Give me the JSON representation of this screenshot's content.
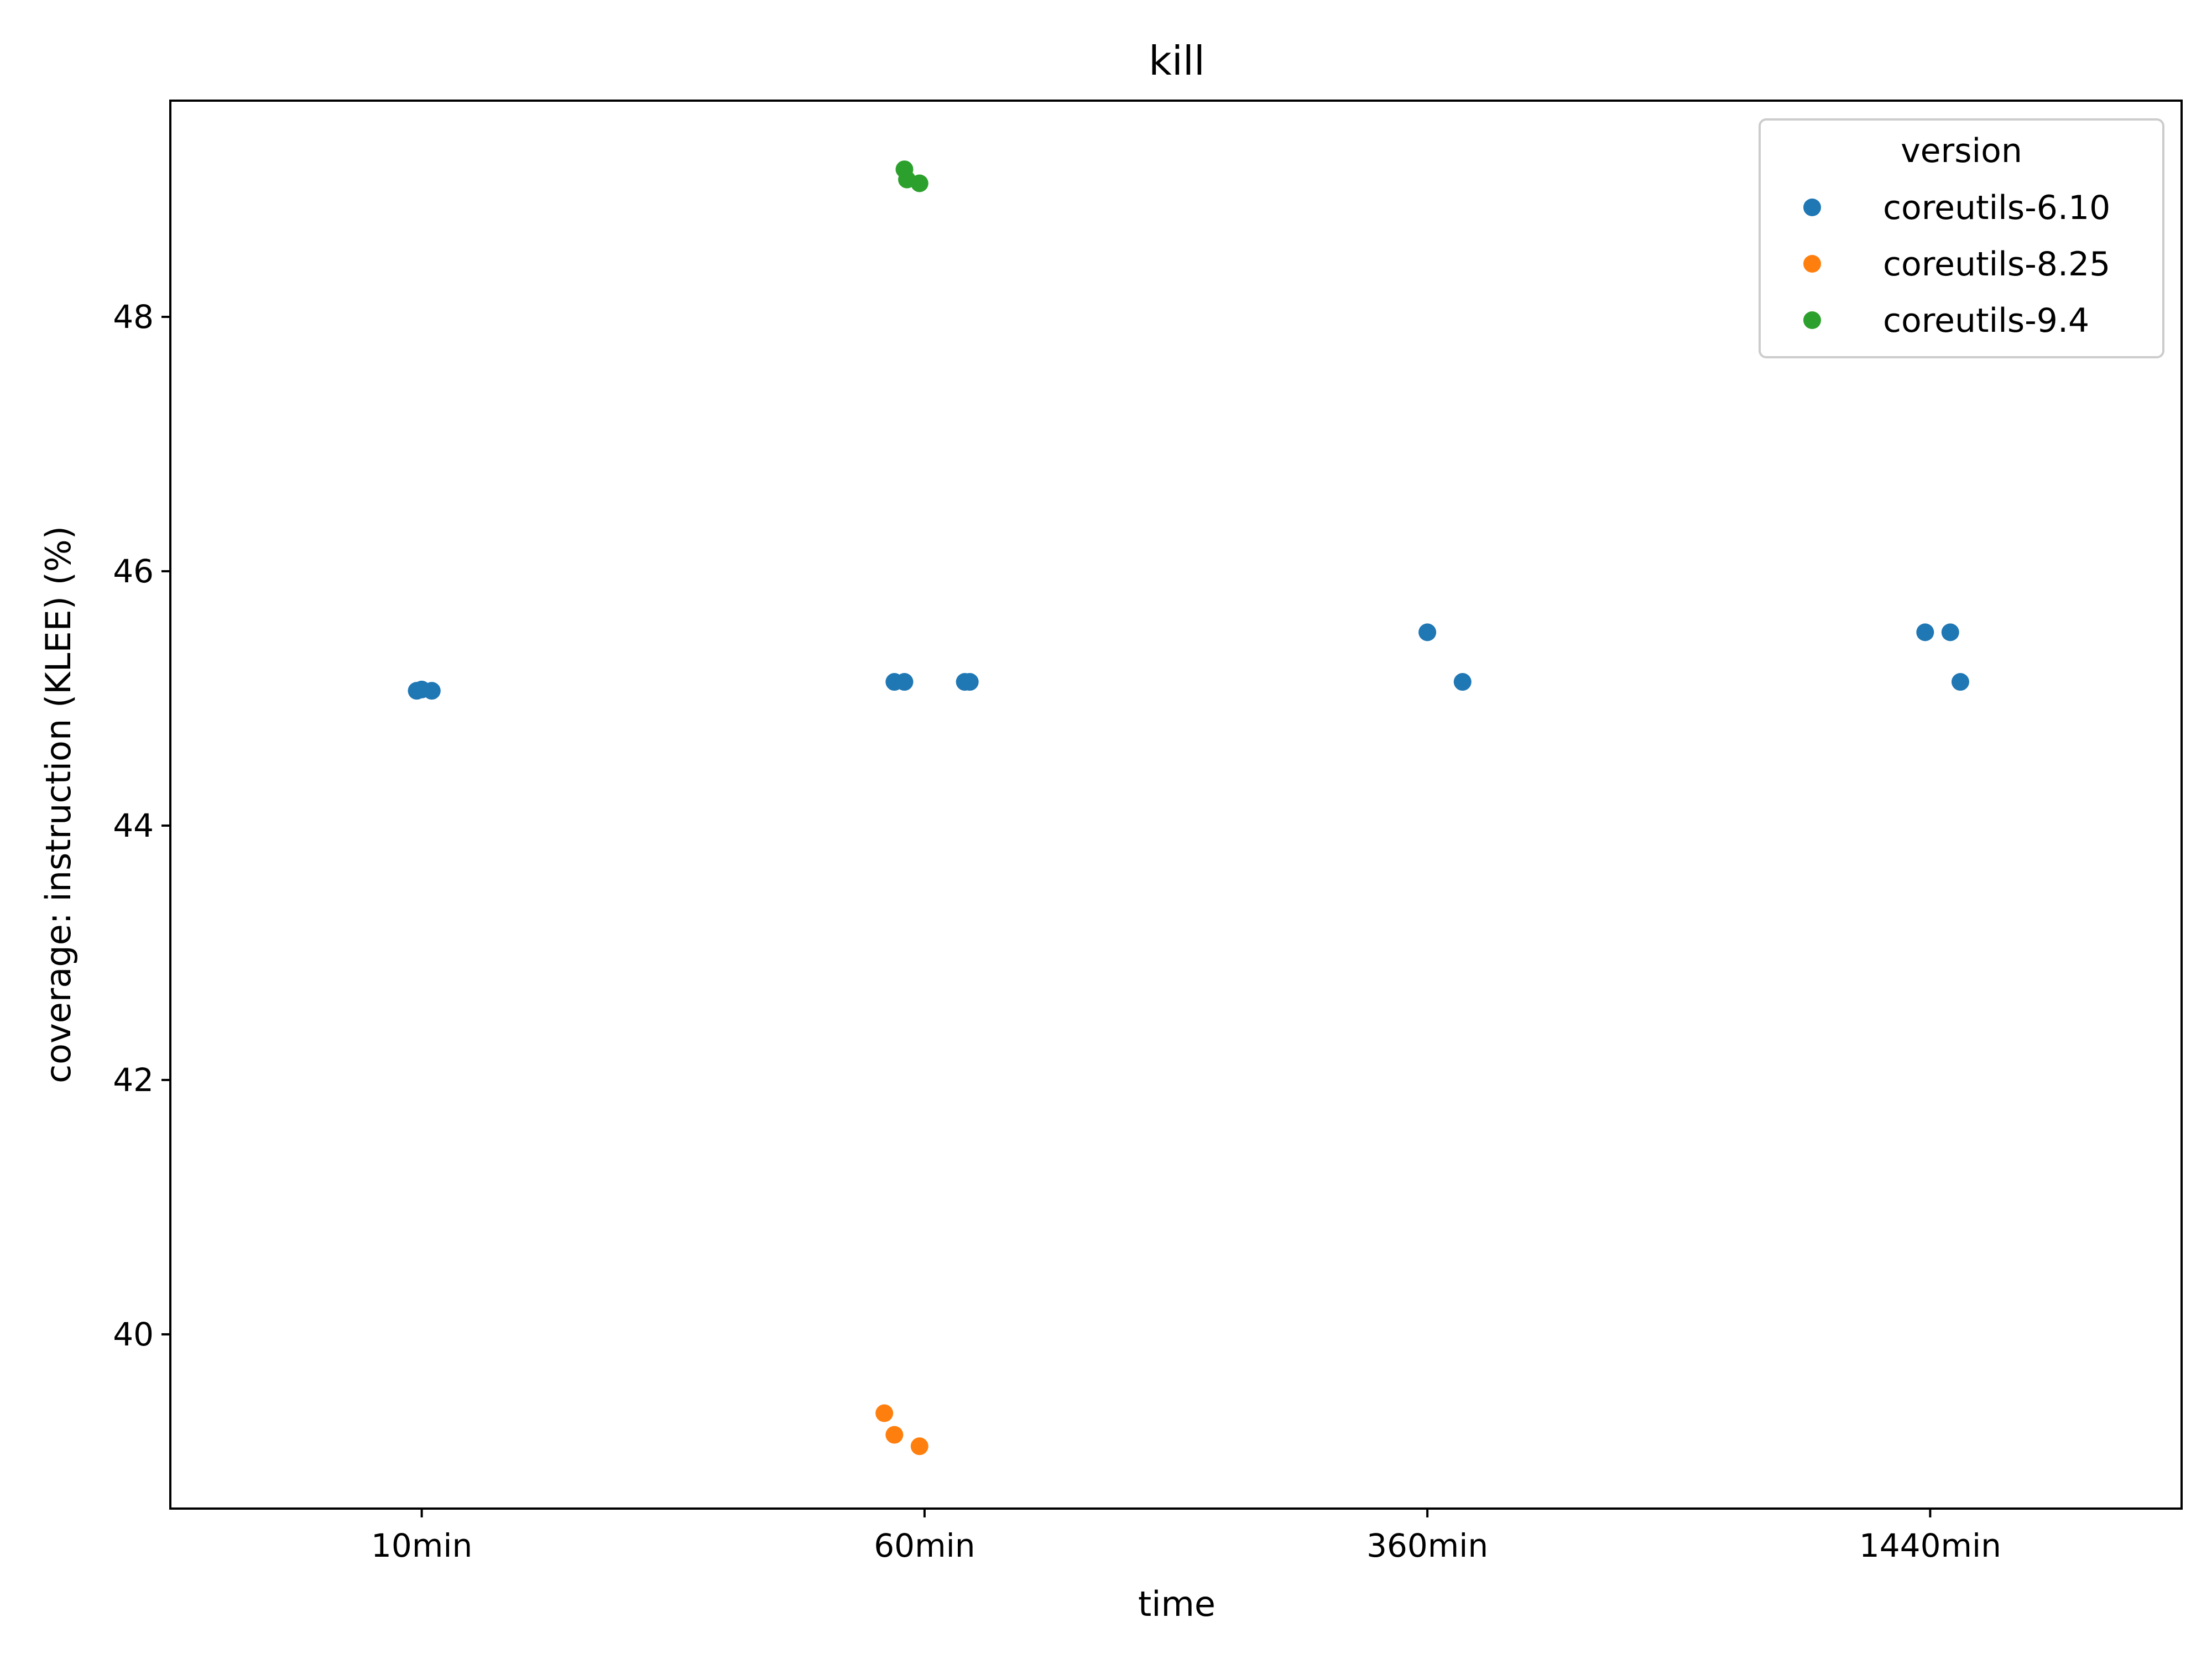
{
  "chart_data": {
    "type": "scatter",
    "title": "kill",
    "xlabel": "time",
    "ylabel": "coverage: instruction (KLEE) (%)",
    "categories": [
      "10min",
      "60min",
      "360min",
      "1440min"
    ],
    "yticks": [
      40,
      42,
      44,
      46,
      48
    ],
    "ylim": [
      38.63,
      49.7
    ],
    "grid": false,
    "legend": {
      "title": "version",
      "placement": "top-right"
    },
    "series": [
      {
        "name": "coreutils-6.10",
        "color": "#1f77b4",
        "points": [
          {
            "x": "10min",
            "offset": -0.01,
            "y": 45.06
          },
          {
            "x": "10min",
            "offset": 0.0,
            "y": 45.07
          },
          {
            "x": "10min",
            "offset": 0.02,
            "y": 45.06
          },
          {
            "x": "60min",
            "offset": -0.06,
            "y": 45.13
          },
          {
            "x": "60min",
            "offset": -0.04,
            "y": 45.13
          },
          {
            "x": "60min",
            "offset": 0.08,
            "y": 45.13
          },
          {
            "x": "60min",
            "offset": 0.09,
            "y": 45.13
          },
          {
            "x": "360min",
            "offset": 0.0,
            "y": 45.52
          },
          {
            "x": "360min",
            "offset": 0.07,
            "y": 45.13
          },
          {
            "x": "1440min",
            "offset": -0.01,
            "y": 45.52
          },
          {
            "x": "1440min",
            "offset": 0.04,
            "y": 45.52
          },
          {
            "x": "1440min",
            "offset": 0.06,
            "y": 45.13
          }
        ]
      },
      {
        "name": "coreutils-8.25",
        "color": "#ff7f0e",
        "points": [
          {
            "x": "60min",
            "offset": -0.08,
            "y": 39.38
          },
          {
            "x": "60min",
            "offset": -0.06,
            "y": 39.21
          },
          {
            "x": "60min",
            "offset": -0.01,
            "y": 39.12
          }
        ]
      },
      {
        "name": "coreutils-9.4",
        "color": "#2ca02c",
        "points": [
          {
            "x": "60min",
            "offset": -0.04,
            "y": 49.16
          },
          {
            "x": "60min",
            "offset": -0.035,
            "y": 49.08
          },
          {
            "x": "60min",
            "offset": -0.01,
            "y": 49.05
          }
        ]
      }
    ]
  }
}
